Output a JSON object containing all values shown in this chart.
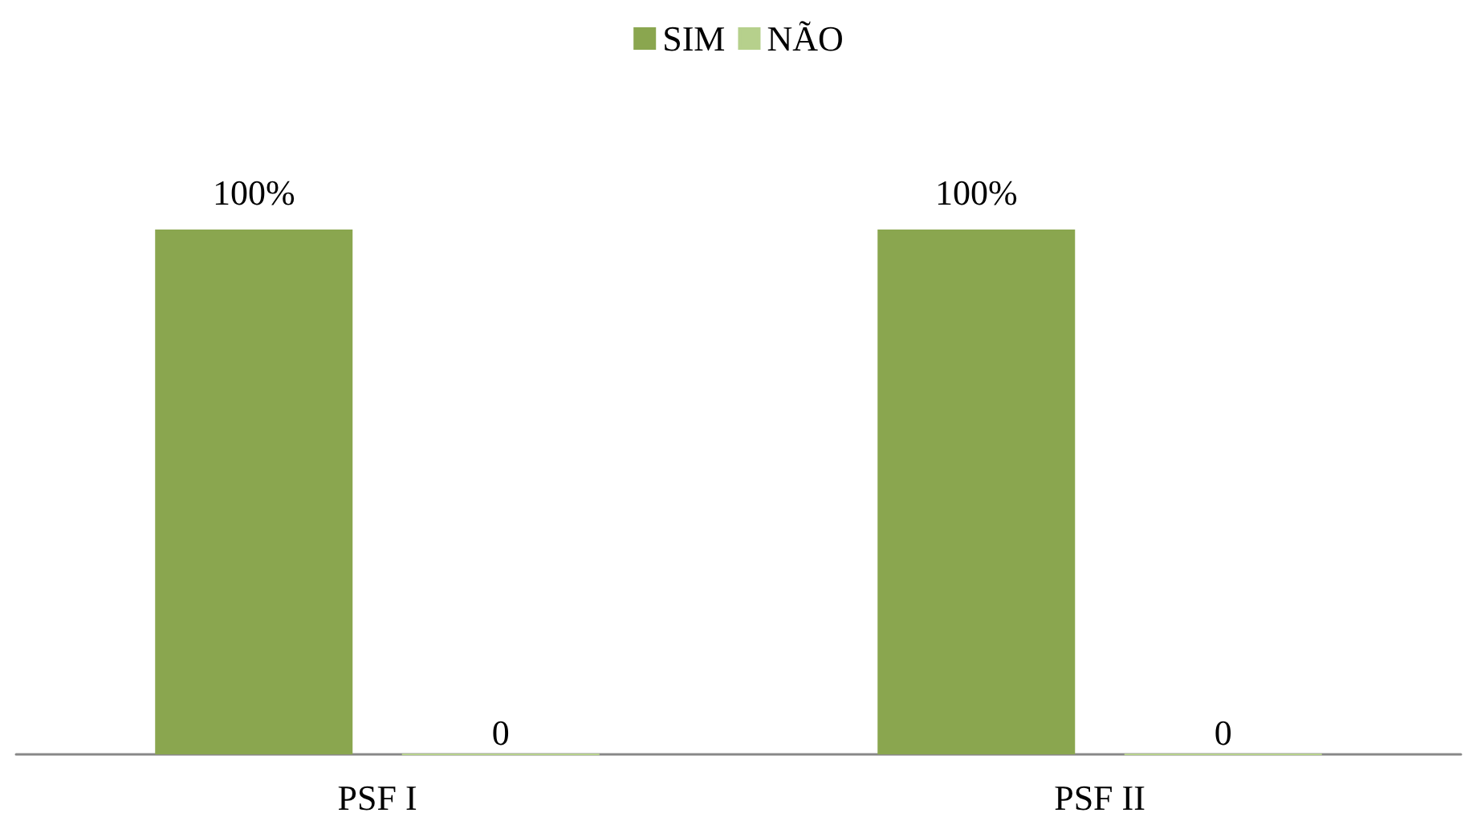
{
  "chart_data": {
    "type": "bar",
    "categories": [
      "PSF I",
      "PSF II"
    ],
    "series": [
      {
        "name": "SIM",
        "color": "#8aa64f",
        "values": [
          100,
          100
        ],
        "value_labels": [
          "100%",
          "100%"
        ]
      },
      {
        "name": "NÃO",
        "color": "#b6d08c",
        "values": [
          0,
          0
        ],
        "value_labels": [
          "0",
          "0"
        ]
      }
    ],
    "legend": "top",
    "grid": false,
    "tick_labels": "x"
  }
}
